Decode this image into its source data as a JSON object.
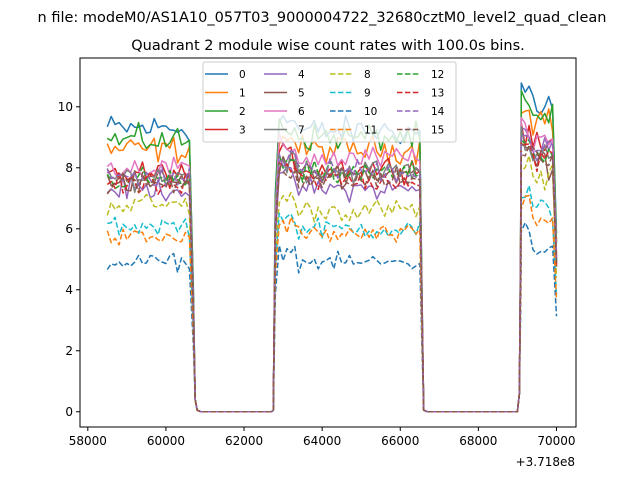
{
  "chart_data": {
    "type": "line",
    "title_line1": "n file: modeM0/AS1A10_057T03_9000004722_32680cztM0_level2_quad_clean",
    "title": "Quadrant 2 module wise count rates with 100.0s bins.",
    "xlabel": "",
    "ylabel": "",
    "x_offset_label": "+3.718e8",
    "xlim": [
      57800,
      70500
    ],
    "ylim": [
      -0.5,
      11.6
    ],
    "xticks": [
      58000,
      60000,
      62000,
      64000,
      66000,
      68000,
      70000
    ],
    "xtick_labels": [
      "58000",
      "60000",
      "62000",
      "64000",
      "66000",
      "68000",
      "70000"
    ],
    "yticks": [
      0,
      2,
      4,
      6,
      8,
      10
    ],
    "ytick_labels": [
      "0",
      "2",
      "4",
      "6",
      "8",
      "10"
    ],
    "grid": false,
    "legend_position": "top-center",
    "bin_width": 100,
    "segments": [
      {
        "start": 58500,
        "end": 60600
      },
      {
        "start": 62900,
        "end": 66500
      },
      {
        "start": 69100,
        "end": 70000
      }
    ],
    "gaps": [
      {
        "start": 60800,
        "end": 62700
      },
      {
        "start": 66600,
        "end": 69000
      }
    ],
    "series": [
      {
        "name": "0",
        "color": "#1f77b4",
        "dash": "solid",
        "levels": [
          9.3,
          9.2,
          10.1
        ]
      },
      {
        "name": "1",
        "color": "#ff7f0e",
        "dash": "solid",
        "levels": [
          8.6,
          8.6,
          9.6
        ]
      },
      {
        "name": "2",
        "color": "#2ca02c",
        "dash": "solid",
        "levels": [
          8.9,
          9.0,
          9.5
        ]
      },
      {
        "name": "3",
        "color": "#d62728",
        "dash": "solid",
        "levels": [
          7.8,
          8.0,
          8.8
        ]
      },
      {
        "name": "4",
        "color": "#9467bd",
        "dash": "solid",
        "levels": [
          7.3,
          7.3,
          8.6
        ]
      },
      {
        "name": "5",
        "color": "#8c564b",
        "dash": "solid",
        "levels": [
          7.6,
          7.8,
          8.2
        ]
      },
      {
        "name": "6",
        "color": "#e377c2",
        "dash": "solid",
        "levels": [
          8.0,
          8.3,
          8.9
        ]
      },
      {
        "name": "7",
        "color": "#7f7f7f",
        "dash": "solid",
        "levels": [
          7.7,
          7.9,
          8.4
        ]
      },
      {
        "name": "8",
        "color": "#bcbd22",
        "dash": "dashed",
        "levels": [
          6.8,
          6.6,
          7.6
        ]
      },
      {
        "name": "9",
        "color": "#17becf",
        "dash": "dashed",
        "levels": [
          6.1,
          6.0,
          6.6
        ]
      },
      {
        "name": "10",
        "color": "#1f77b4",
        "dash": "dashed",
        "levels": [
          4.9,
          4.9,
          5.4
        ]
      },
      {
        "name": "11",
        "color": "#ff7f0e",
        "dash": "dashed",
        "levels": [
          5.7,
          5.8,
          6.3
        ]
      },
      {
        "name": "12",
        "color": "#2ca02c",
        "dash": "dashed",
        "levels": [
          7.6,
          7.8,
          8.5
        ]
      },
      {
        "name": "13",
        "color": "#d62728",
        "dash": "dashed",
        "levels": [
          7.4,
          7.6,
          8.3
        ]
      },
      {
        "name": "14",
        "color": "#9467bd",
        "dash": "dashed",
        "levels": [
          7.7,
          7.9,
          8.6
        ]
      },
      {
        "name": "15",
        "color": "#8c564b",
        "dash": "dashed",
        "levels": [
          7.5,
          7.6,
          8.2
        ]
      }
    ]
  }
}
